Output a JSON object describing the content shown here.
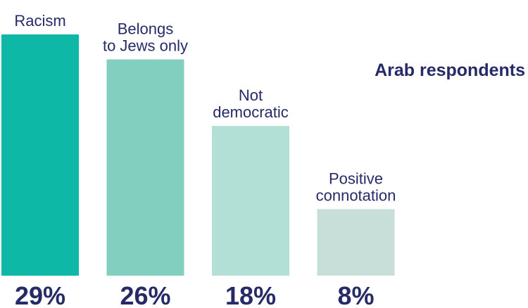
{
  "chart_data": {
    "type": "bar",
    "title": "Arab respondents",
    "categories": [
      "Racism",
      "Belongs to Jews only",
      "Not democratic",
      "Positive connotation"
    ],
    "category_lines": [
      [
        "Racism"
      ],
      [
        "Belongs",
        "to Jews only"
      ],
      [
        "Not",
        "democratic"
      ],
      [
        "Positive",
        "connotation"
      ]
    ],
    "values": [
      29,
      26,
      18,
      8
    ],
    "value_labels": [
      "29%",
      "26%",
      "18%",
      "8%"
    ],
    "ylim": [
      0,
      29
    ],
    "xlabel": "",
    "ylabel": "",
    "grid": false,
    "colors": [
      "#0db8a6",
      "#82cfc0",
      "#b3e0d6",
      "#c8dfd9"
    ],
    "text_color": "#262a66"
  }
}
